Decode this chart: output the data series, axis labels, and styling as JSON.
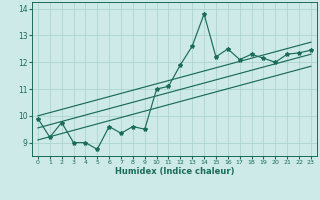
{
  "title": "",
  "xlabel": "Humidex (Indice chaleur)",
  "background_color": "#ceeae8",
  "grid_color": "#aed4d0",
  "line_color": "#1a6b5a",
  "x_data": [
    0,
    1,
    2,
    3,
    4,
    5,
    6,
    7,
    8,
    9,
    10,
    11,
    12,
    13,
    14,
    15,
    16,
    17,
    18,
    19,
    20,
    21,
    22,
    23
  ],
  "y_main": [
    9.9,
    9.2,
    9.75,
    9.0,
    9.0,
    8.75,
    9.6,
    9.35,
    9.6,
    9.5,
    11.0,
    11.1,
    11.9,
    12.6,
    13.8,
    12.2,
    12.5,
    12.1,
    12.3,
    12.15,
    12.0,
    12.3,
    12.35,
    12.45
  ],
  "xlim": [
    -0.5,
    23.5
  ],
  "ylim": [
    8.5,
    14.25
  ],
  "yticks": [
    9,
    10,
    11,
    12,
    13,
    14
  ],
  "xticks": [
    0,
    1,
    2,
    3,
    4,
    5,
    6,
    7,
    8,
    9,
    10,
    11,
    12,
    13,
    14,
    15,
    16,
    17,
    18,
    19,
    20,
    21,
    22,
    23
  ],
  "reg_lower_start": 9.1,
  "reg_lower_end": 11.85,
  "reg_mid_start": 9.55,
  "reg_mid_end": 12.3,
  "reg_upper_start": 10.0,
  "reg_upper_end": 12.75,
  "reg_x_start": 0,
  "reg_x_end": 23
}
